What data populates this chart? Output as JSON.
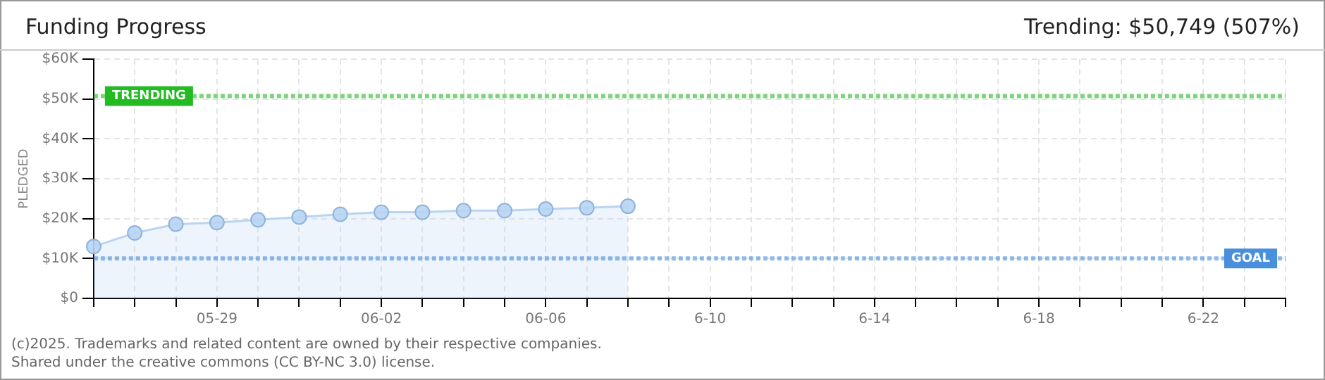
{
  "chart_data": {
    "type": "area",
    "title": "Funding Progress",
    "subtitle": "Trending: $50,749 (507%)",
    "ylabel": "PLEDGED",
    "categories": [
      null,
      null,
      null,
      "05-29",
      null,
      null,
      null,
      "06-02",
      null,
      null,
      null,
      "06-06",
      null,
      null,
      null,
      "6-10",
      null,
      null,
      null,
      "6-14",
      null,
      null,
      null,
      "6-18",
      null,
      null,
      null,
      "6-22",
      null,
      null
    ],
    "series": [
      {
        "color": "#b8d4f2",
        "values": [
          13000,
          16400,
          18600,
          19000,
          19700,
          20400,
          21100,
          21600,
          21600,
          22000,
          22000,
          22400,
          22700,
          23100,
          null,
          null,
          null,
          null,
          null,
          null,
          null,
          null,
          null,
          null,
          null,
          null,
          null,
          null,
          null,
          null
        ]
      }
    ],
    "ylim": [
      0,
      60000
    ],
    "yticks": [
      {
        "value": 0,
        "label": "$0"
      },
      {
        "value": 10000,
        "label": "$10K"
      },
      {
        "value": 20000,
        "label": "$20K"
      },
      {
        "value": 30000,
        "label": "$30K"
      },
      {
        "value": 40000,
        "label": "$40K"
      },
      {
        "value": 50000,
        "label": "$50K"
      },
      {
        "value": 60000,
        "label": "$60K"
      }
    ],
    "ref_lines": [
      {
        "axis": "y",
        "value": 50749,
        "label": "TRENDING",
        "color": "#22bb22",
        "line_style": "dotted"
      },
      {
        "axis": "y",
        "value": 10000,
        "label": "GOAL",
        "color": "#4a8fdc",
        "line_style": "dotted"
      }
    ],
    "grid": true,
    "marker": "circle",
    "legend": false,
    "annotations": [
      "(c)2025. Trademarks and related content are owned by their respective companies.",
      "Shared under the creative commons (CC BY-NC 3.0) license."
    ]
  }
}
